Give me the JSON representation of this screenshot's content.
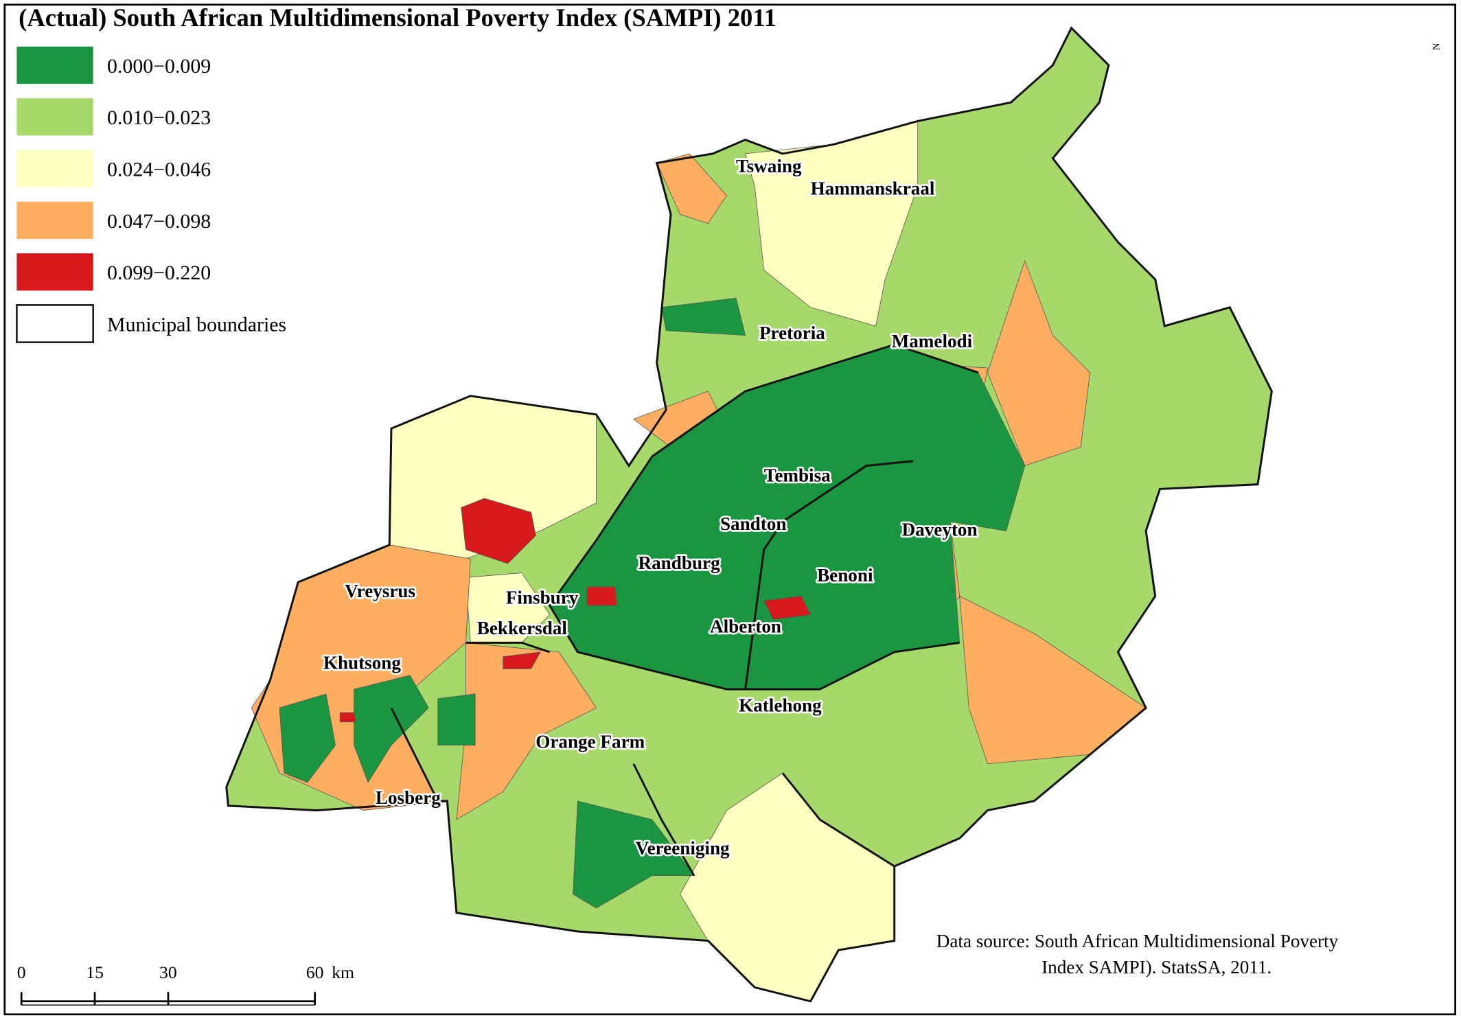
{
  "title": "(Actual) South African Multidimensional Poverty Index (SAMPI) 2011",
  "legend": [
    {
      "label": "0.000−0.009",
      "color": "#1a9641"
    },
    {
      "label": "0.010−0.023",
      "color": "#a6d96a"
    },
    {
      "label": "0.024−0.046",
      "color": "#ffffc0"
    },
    {
      "label": "0.047−0.098",
      "color": "#fdae61"
    },
    {
      "label": "0.099−0.220",
      "color": "#d7191c"
    },
    {
      "label": "Municipal boundaries",
      "color": "#ffffff"
    }
  ],
  "places": [
    "Tswaing",
    "Hammanskraal",
    "Pretoria",
    "Mamelodi",
    "Tembisa",
    "Sandton",
    "Daveyton",
    "Randburg",
    "Benoni",
    "Vreysrus",
    "Finsbury",
    "Bekkersdal",
    "Alberton",
    "Khutsong",
    "Katlehong",
    "Orange Farm",
    "Losberg",
    "Vereeniging"
  ],
  "scale_bar": {
    "ticks": [
      0,
      15,
      30,
      60
    ],
    "unit": "km"
  },
  "source": [
    "Data source:  South African Multidimensional Poverty",
    "Index  SAMPI). StatsSA, 2011."
  ],
  "north": "N"
}
